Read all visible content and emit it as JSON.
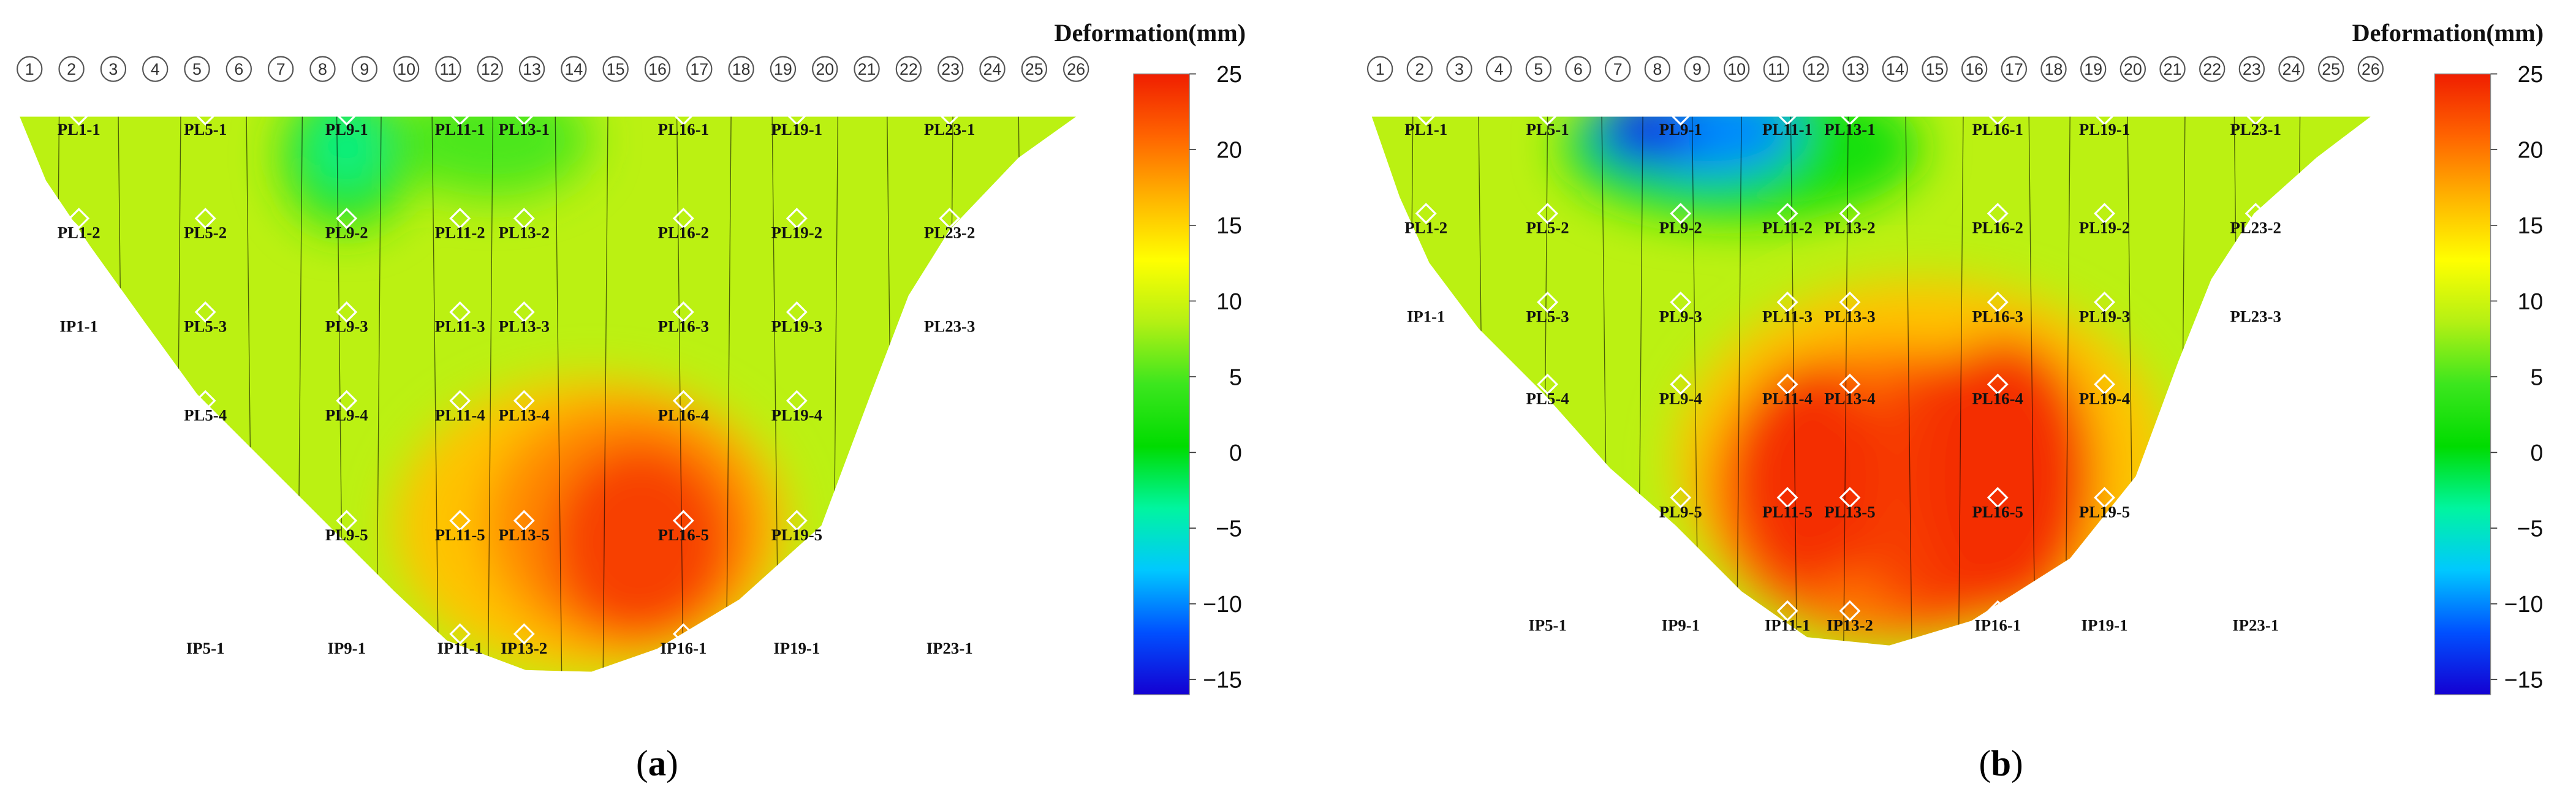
{
  "colors": {
    "scale": [
      "#1400d2",
      "#0050ff",
      "#00c8ff",
      "#00f5a0",
      "#00dc00",
      "#3ce61e",
      "#b4f014",
      "#ffff00",
      "#ffb400",
      "#ff6400",
      "#f01e00"
    ],
    "marker": "#ffffff",
    "text": "#111111",
    "section_line": "#000000"
  },
  "chart_data": [
    {
      "type": "heatmap",
      "panel_label": "a",
      "legend_title": "Deformation(mm)",
      "colorbar_ticks": [
        25,
        20,
        15,
        10,
        5,
        0,
        -5,
        -10,
        -15
      ],
      "range": [
        -16,
        25
      ],
      "section_numbers": [
        "1",
        "2",
        "3",
        "4",
        "5",
        "6",
        "7",
        "8",
        "9",
        "10",
        "11",
        "12",
        "13",
        "14",
        "15",
        "16",
        "17",
        "18",
        "19",
        "20",
        "21",
        "22",
        "23",
        "24",
        "25",
        "26"
      ],
      "extremes": {
        "min_near": "PL9-1",
        "max_near": "PL16-5"
      },
      "points": [
        {
          "label": "PL1-1",
          "marker": true
        },
        {
          "label": "PL5-1",
          "marker": true
        },
        {
          "label": "PL9-1",
          "marker": true
        },
        {
          "label": "PL11-1",
          "marker": true
        },
        {
          "label": "PL13-1",
          "marker": true
        },
        {
          "label": "PL16-1",
          "marker": true
        },
        {
          "label": "PL19-1",
          "marker": true
        },
        {
          "label": "PL23-1",
          "marker": true
        },
        {
          "label": "PL1-2",
          "marker": true
        },
        {
          "label": "PL5-2",
          "marker": true
        },
        {
          "label": "PL9-2",
          "marker": true
        },
        {
          "label": "PL11-2",
          "marker": true
        },
        {
          "label": "PL13-2",
          "marker": true
        },
        {
          "label": "PL16-2",
          "marker": true
        },
        {
          "label": "PL19-2",
          "marker": true
        },
        {
          "label": "PL23-2",
          "marker": true
        },
        {
          "label": "IP1-1",
          "marker": false
        },
        {
          "label": "PL5-3",
          "marker": true
        },
        {
          "label": "PL9-3",
          "marker": true
        },
        {
          "label": "PL11-3",
          "marker": true
        },
        {
          "label": "PL13-3",
          "marker": true
        },
        {
          "label": "PL16-3",
          "marker": true
        },
        {
          "label": "PL19-3",
          "marker": true
        },
        {
          "label": "PL23-3",
          "marker": false
        },
        {
          "label": "PL5-4",
          "marker": true
        },
        {
          "label": "PL9-4",
          "marker": true
        },
        {
          "label": "PL11-4",
          "marker": true
        },
        {
          "label": "PL13-4",
          "marker": true
        },
        {
          "label": "PL16-4",
          "marker": true
        },
        {
          "label": "PL19-4",
          "marker": true
        },
        {
          "label": "PL9-5",
          "marker": true
        },
        {
          "label": "PL11-5",
          "marker": true
        },
        {
          "label": "PL13-5",
          "marker": true
        },
        {
          "label": "PL16-5",
          "marker": true
        },
        {
          "label": "PL19-5",
          "marker": true
        },
        {
          "label": "IP5-1",
          "marker": false
        },
        {
          "label": "IP9-1",
          "marker": false
        },
        {
          "label": "IP11-1",
          "marker": true
        },
        {
          "label": "IP13-2",
          "marker": true
        },
        {
          "label": "IP16-1",
          "marker": true
        },
        {
          "label": "IP19-1",
          "marker": false
        },
        {
          "label": "IP23-1",
          "marker": false
        }
      ]
    },
    {
      "type": "heatmap",
      "panel_label": "b",
      "legend_title": "Deformation(mm)",
      "colorbar_ticks": [
        25,
        20,
        15,
        10,
        5,
        0,
        -5,
        -10,
        -15
      ],
      "range": [
        -16,
        25
      ],
      "section_numbers": [
        "1",
        "2",
        "3",
        "4",
        "5",
        "6",
        "7",
        "8",
        "9",
        "10",
        "11",
        "12",
        "13",
        "14",
        "15",
        "16",
        "17",
        "18",
        "19",
        "20",
        "21",
        "22",
        "23",
        "24",
        "25",
        "26"
      ],
      "extremes": {
        "min_near": "PL9-1",
        "max_near": "PL16-4"
      },
      "points": [
        {
          "label": "PL1-1",
          "marker": true
        },
        {
          "label": "PL5-1",
          "marker": true
        },
        {
          "label": "PL9-1",
          "marker": true
        },
        {
          "label": "PL11-1",
          "marker": true
        },
        {
          "label": "PL13-1",
          "marker": true
        },
        {
          "label": "PL16-1",
          "marker": true
        },
        {
          "label": "PL19-1",
          "marker": true
        },
        {
          "label": "PL23-1",
          "marker": true
        },
        {
          "label": "PL1-2",
          "marker": true
        },
        {
          "label": "PL5-2",
          "marker": true
        },
        {
          "label": "PL9-2",
          "marker": true
        },
        {
          "label": "PL11-2",
          "marker": true
        },
        {
          "label": "PL13-2",
          "marker": true
        },
        {
          "label": "PL16-2",
          "marker": true
        },
        {
          "label": "PL19-2",
          "marker": true
        },
        {
          "label": "PL23-2",
          "marker": true
        },
        {
          "label": "IP1-1",
          "marker": false
        },
        {
          "label": "PL5-3",
          "marker": true
        },
        {
          "label": "PL9-3",
          "marker": true
        },
        {
          "label": "PL11-3",
          "marker": true
        },
        {
          "label": "PL13-3",
          "marker": true
        },
        {
          "label": "PL16-3",
          "marker": true
        },
        {
          "label": "PL19-3",
          "marker": true
        },
        {
          "label": "PL23-3",
          "marker": false
        },
        {
          "label": "PL5-4",
          "marker": true
        },
        {
          "label": "PL9-4",
          "marker": true
        },
        {
          "label": "PL11-4",
          "marker": true
        },
        {
          "label": "PL13-4",
          "marker": true
        },
        {
          "label": "PL16-4",
          "marker": true
        },
        {
          "label": "PL19-4",
          "marker": true
        },
        {
          "label": "PL9-5",
          "marker": true
        },
        {
          "label": "PL11-5",
          "marker": true
        },
        {
          "label": "PL13-5",
          "marker": true
        },
        {
          "label": "PL16-5",
          "marker": true
        },
        {
          "label": "PL19-5",
          "marker": true
        },
        {
          "label": "IP5-1",
          "marker": false
        },
        {
          "label": "IP9-1",
          "marker": false
        },
        {
          "label": "IP11-1",
          "marker": true
        },
        {
          "label": "IP13-2",
          "marker": true
        },
        {
          "label": "IP16-1",
          "marker": true
        },
        {
          "label": "IP19-1",
          "marker": false
        },
        {
          "label": "IP23-1",
          "marker": false
        }
      ]
    }
  ]
}
